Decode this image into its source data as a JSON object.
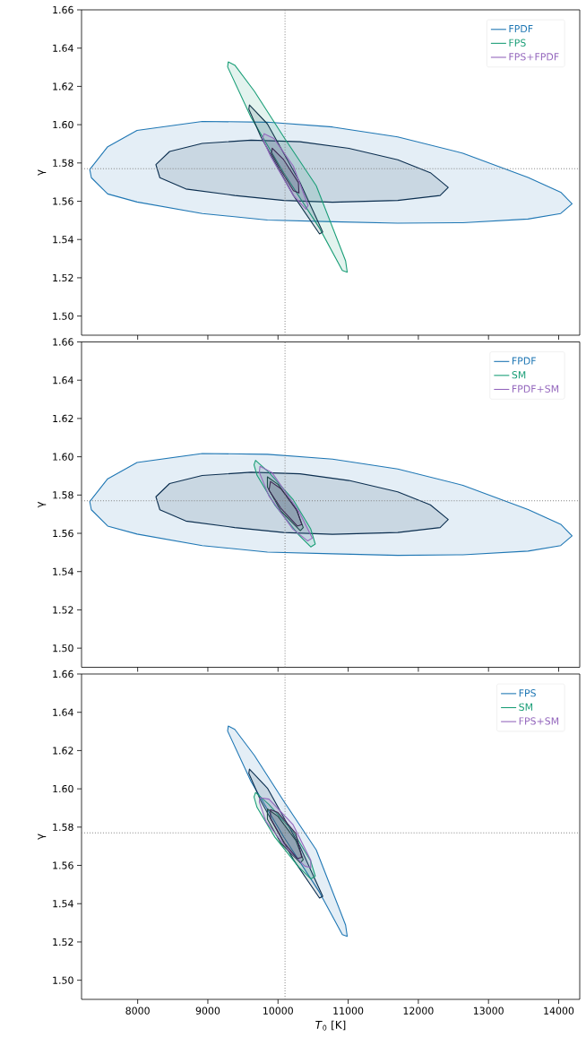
{
  "chart_data": [
    {
      "type": "area",
      "ylabel": "γ",
      "xlim": [
        7200,
        14300
      ],
      "ylim": [
        1.49,
        1.66
      ],
      "xticks": [
        8000,
        9000,
        10000,
        11000,
        12000,
        13000,
        14000
      ],
      "yticks": [
        {
          "value": 1.5,
          "label": "1.50"
        },
        {
          "value": 1.52,
          "label": "1.52"
        },
        {
          "value": 1.54,
          "label": "1.54"
        },
        {
          "value": 1.56,
          "label": "1.56"
        },
        {
          "value": 1.58,
          "label": "1.58"
        },
        {
          "value": 1.6,
          "label": "1.60"
        },
        {
          "value": 1.62,
          "label": "1.62"
        },
        {
          "value": 1.64,
          "label": "1.64"
        },
        {
          "value": 1.66,
          "label": "1.66"
        }
      ],
      "tick_labels": "y",
      "legend": "top right",
      "ref_lines": [
        {
          "axis": "x",
          "value": 10100,
          "line_style": "dotted",
          "color": "#808080"
        },
        {
          "axis": "y",
          "value": 1.577,
          "line_style": "dotted",
          "color": "#808080"
        }
      ],
      "series": [
        {
          "name": "FPDF",
          "color": "#1f77b4",
          "x": [
            7317,
            7573,
            7991,
            8920,
            9849,
            10777,
            11706,
            12635,
            13564,
            14029,
            14191,
            14029,
            13564,
            12635,
            11706,
            10777,
            9849,
            8920,
            7991,
            7573,
            7340
          ],
          "values": [
            1.5766,
            1.5885,
            1.597,
            1.6017,
            1.6013,
            1.5988,
            1.5936,
            1.5851,
            1.5724,
            1.5647,
            1.5587,
            1.5536,
            1.5507,
            1.5488,
            1.5485,
            1.5493,
            1.5502,
            1.5536,
            1.5596,
            1.5638,
            1.5723
          ]
        },
        {
          "color": "#0b2e4f",
          "x": [
            8260,
            8455,
            8920,
            9616,
            10313,
            11010,
            11706,
            12171,
            12426,
            12310,
            11706,
            10777,
            10081,
            9384,
            8687,
            8316
          ],
          "values": [
            1.5791,
            1.586,
            1.5902,
            1.5919,
            1.5911,
            1.5876,
            1.5817,
            1.5749,
            1.5672,
            1.563,
            1.5604,
            1.5595,
            1.5604,
            1.563,
            1.5664,
            1.5723
          ]
        },
        {
          "name": "FPS",
          "color": "#1a9e77",
          "x": [
            9291,
            9384,
            9663,
            10081,
            10545,
            10963,
            10987,
            10917,
            10592,
            10081,
            9616,
            9282
          ],
          "values": [
            1.6328,
            1.6311,
            1.6175,
            1.5936,
            1.5681,
            1.5289,
            1.5229,
            1.5238,
            1.5459,
            1.5749,
            1.6038,
            1.6302
          ]
        },
        {
          "color": "#12364a",
          "x": [
            9593,
            9849,
            10313,
            10638,
            10592,
            10220,
            9756,
            9584
          ],
          "values": [
            1.6103,
            1.6004,
            1.5698,
            1.5439,
            1.5429,
            1.563,
            1.5936,
            1.6081
          ]
        },
        {
          "name": "FPS+FPDF",
          "color": "#9467bd",
          "x": [
            9802,
            9942,
            10220,
            10429,
            10397,
            10220,
            9895,
            9779
          ],
          "values": [
            1.5953,
            1.5928,
            1.5783,
            1.5578,
            1.5558,
            1.563,
            1.5834,
            1.5928
          ]
        },
        {
          "color": "#3b2752",
          "x": [
            9918,
            10081,
            10290,
            10299,
            10220,
            10034,
            9905
          ],
          "values": [
            1.5877,
            1.5817,
            1.5698,
            1.5643,
            1.5655,
            1.5766,
            1.5851
          ]
        }
      ]
    },
    {
      "type": "area",
      "ylabel": "γ",
      "xlim": [
        7200,
        14300
      ],
      "ylim": [
        1.49,
        1.66
      ],
      "xticks": [
        8000,
        9000,
        10000,
        11000,
        12000,
        13000,
        14000
      ],
      "yticks": [
        {
          "value": 1.5,
          "label": "1.50"
        },
        {
          "value": 1.52,
          "label": "1.52"
        },
        {
          "value": 1.54,
          "label": "1.54"
        },
        {
          "value": 1.56,
          "label": "1.56"
        },
        {
          "value": 1.58,
          "label": "1.58"
        },
        {
          "value": 1.6,
          "label": "1.60"
        },
        {
          "value": 1.62,
          "label": "1.62"
        },
        {
          "value": 1.64,
          "label": "1.64"
        },
        {
          "value": 1.66,
          "label": "1.66"
        }
      ],
      "tick_labels": "y",
      "legend": "top right",
      "ref_lines": [
        {
          "axis": "x",
          "value": 10100,
          "line_style": "dotted",
          "color": "#808080"
        },
        {
          "axis": "y",
          "value": 1.577,
          "line_style": "dotted",
          "color": "#808080"
        }
      ],
      "series": [
        {
          "name": "FPDF",
          "color": "#1f77b4",
          "x": [
            7317,
            7573,
            7991,
            8920,
            9849,
            10777,
            11706,
            12635,
            13564,
            14029,
            14191,
            14029,
            13564,
            12635,
            11706,
            10777,
            9849,
            8920,
            7991,
            7573,
            7340
          ],
          "values": [
            1.5766,
            1.5885,
            1.597,
            1.6017,
            1.6013,
            1.5988,
            1.5936,
            1.5851,
            1.5724,
            1.5647,
            1.5587,
            1.5536,
            1.5507,
            1.5488,
            1.5485,
            1.5493,
            1.5502,
            1.5536,
            1.5596,
            1.5638,
            1.5723
          ]
        },
        {
          "color": "#0b2e4f",
          "x": [
            8260,
            8455,
            8920,
            9616,
            10313,
            11010,
            11706,
            12171,
            12426,
            12310,
            11706,
            10777,
            10081,
            9384,
            8687,
            8316
          ],
          "values": [
            1.5791,
            1.586,
            1.5902,
            1.5919,
            1.5911,
            1.5876,
            1.5817,
            1.5749,
            1.5672,
            1.563,
            1.5604,
            1.5595,
            1.5604,
            1.563,
            1.5664,
            1.5723
          ]
        },
        {
          "name": "SM",
          "color": "#1a9e77",
          "x": [
            9680,
            9872,
            10212,
            10467,
            10531,
            10467,
            10296,
            9956,
            9701,
            9658
          ],
          "values": [
            1.5981,
            1.5918,
            1.5778,
            1.5622,
            1.5544,
            1.5529,
            1.5591,
            1.5747,
            1.5903,
            1.5958
          ]
        },
        {
          "color": "#0d4a3a",
          "x": [
            9849,
            10000,
            10254,
            10360,
            10318,
            10041,
            9849
          ],
          "values": [
            1.5895,
            1.5856,
            1.5731,
            1.563,
            1.5614,
            1.5716,
            1.5841
          ]
        },
        {
          "name": "FPDF+SM",
          "color": "#9467bd",
          "x": [
            9743,
            9913,
            10296,
            10488,
            10424,
            10212,
            9872,
            9734
          ],
          "values": [
            1.595,
            1.5918,
            1.5716,
            1.5575,
            1.556,
            1.5622,
            1.5794,
            1.5918
          ]
        },
        {
          "color": "#3b2752",
          "x": [
            9893,
            10041,
            10275,
            10339,
            10275,
            10041,
            9872
          ],
          "values": [
            1.5871,
            1.5833,
            1.5716,
            1.5646,
            1.5638,
            1.5731,
            1.5825
          ]
        }
      ]
    },
    {
      "type": "area",
      "ylabel": "γ",
      "xlabel": "*T*$_{0}$ [K]",
      "xlim": [
        7200,
        14300
      ],
      "ylim": [
        1.49,
        1.66
      ],
      "xticks": [
        8000,
        9000,
        10000,
        11000,
        12000,
        13000,
        14000
      ],
      "yticks": [
        {
          "value": 1.5,
          "label": "1.50"
        },
        {
          "value": 1.52,
          "label": "1.52"
        },
        {
          "value": 1.54,
          "label": "1.54"
        },
        {
          "value": 1.56,
          "label": "1.56"
        },
        {
          "value": 1.58,
          "label": "1.58"
        },
        {
          "value": 1.6,
          "label": "1.60"
        },
        {
          "value": 1.62,
          "label": "1.62"
        },
        {
          "value": 1.64,
          "label": "1.64"
        },
        {
          "value": 1.66,
          "label": "1.66"
        }
      ],
      "legend": "top right",
      "ref_lines": [
        {
          "axis": "x",
          "value": 10100,
          "line_style": "dotted",
          "color": "#808080"
        },
        {
          "axis": "y",
          "value": 1.577,
          "line_style": "dotted",
          "color": "#808080"
        }
      ],
      "series": [
        {
          "name": "FPS",
          "color": "#1f77b4",
          "x": [
            9291,
            9384,
            9663,
            10081,
            10545,
            10963,
            10987,
            10917,
            10592,
            10081,
            9616,
            9282
          ],
          "values": [
            1.6328,
            1.6311,
            1.6175,
            1.5936,
            1.5681,
            1.5289,
            1.5229,
            1.5238,
            1.5459,
            1.5749,
            1.6038,
            1.6302
          ]
        },
        {
          "color": "#0b2e4f",
          "x": [
            9593,
            9849,
            10313,
            10638,
            10592,
            10220,
            9756,
            9584
          ],
          "values": [
            1.6103,
            1.6004,
            1.5698,
            1.5439,
            1.5429,
            1.563,
            1.5936,
            1.6081
          ]
        },
        {
          "name": "SM",
          "color": "#1a9e77",
          "x": [
            9680,
            9872,
            10212,
            10467,
            10531,
            10467,
            10296,
            9956,
            9701,
            9658
          ],
          "values": [
            1.5981,
            1.5918,
            1.5778,
            1.5622,
            1.5544,
            1.5529,
            1.5591,
            1.5747,
            1.5903,
            1.5958
          ]
        },
        {
          "color": "#0d4a3a",
          "x": [
            9849,
            10000,
            10254,
            10360,
            10318,
            10041,
            9849
          ],
          "values": [
            1.5895,
            1.5856,
            1.5731,
            1.563,
            1.5614,
            1.5716,
            1.5841
          ]
        },
        {
          "name": "FPS+SM",
          "color": "#9467bd",
          "x": [
            9743,
            9872,
            10212,
            10467,
            10467,
            10382,
            10126,
            9829,
            9734
          ],
          "values": [
            1.5954,
            1.5946,
            1.5814,
            1.5627,
            1.5588,
            1.5596,
            1.5689,
            1.5829,
            1.5931
          ]
        },
        {
          "color": "#3b2752",
          "x": [
            9893,
            9999,
            10254,
            10340,
            10276,
            10084,
            9893
          ],
          "values": [
            1.5892,
            1.5876,
            1.5767,
            1.5642,
            1.5635,
            1.572,
            1.5845
          ]
        }
      ]
    }
  ]
}
